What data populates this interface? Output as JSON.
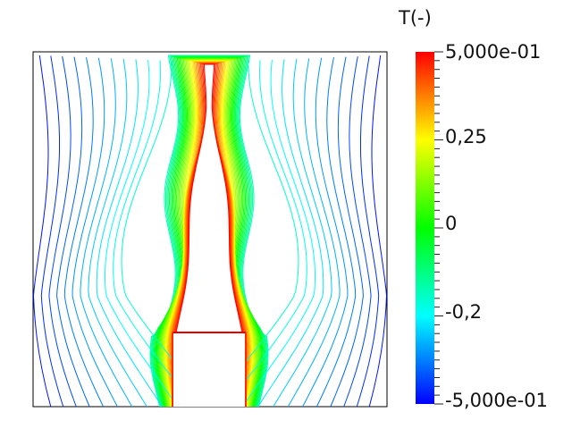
{
  "colorbar": {
    "title": "T(-)",
    "range": [
      -0.5,
      0.5
    ],
    "labels": {
      "max": "5,000e-01",
      "p025": "0,25",
      "zero": "0",
      "m02": "-0,2",
      "min": "-5,000e-01"
    },
    "colors": [
      "#0000ff",
      "#00ffff",
      "#00ff00",
      "#ffff00",
      "#ff0000"
    ]
  },
  "plot": {
    "contour_levels": 30,
    "background": "#ffffff",
    "frame_color": "#000000"
  }
}
